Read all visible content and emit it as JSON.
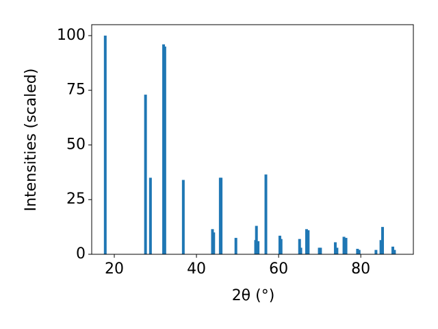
{
  "chart_data": {
    "type": "bar",
    "x_label": "2θ (°)",
    "y_label": "Intensities (scaled)",
    "color": "#1f77b4",
    "x": [
      17.8,
      27.6,
      28.8,
      32.0,
      32.3,
      36.8,
      43.9,
      44.2,
      45.8,
      46.0,
      49.6,
      54.4,
      54.6,
      55.0,
      56.9,
      60.3,
      60.6,
      65.1,
      65.4,
      66.8,
      67.2,
      69.9,
      70.2,
      73.8,
      74.2,
      75.9,
      76.4,
      79.2,
      79.6,
      83.7,
      84.9,
      85.3,
      87.8,
      88.2
    ],
    "values": [
      100,
      73,
      35,
      96,
      95,
      34,
      11.5,
      10,
      35,
      35,
      7.5,
      6.5,
      13,
      6,
      36.5,
      8.5,
      7,
      7,
      3,
      11.5,
      11,
      3,
      3,
      5.5,
      3,
      8,
      7.5,
      2.5,
      2,
      2,
      6.5,
      12.5,
      3.5,
      2
    ],
    "xlim": [
      14.5,
      92.8
    ],
    "xticks": [
      20,
      40,
      60,
      80
    ],
    "ylim": [
      0,
      105
    ],
    "yticks": [
      0,
      25,
      50,
      75,
      100
    ]
  }
}
